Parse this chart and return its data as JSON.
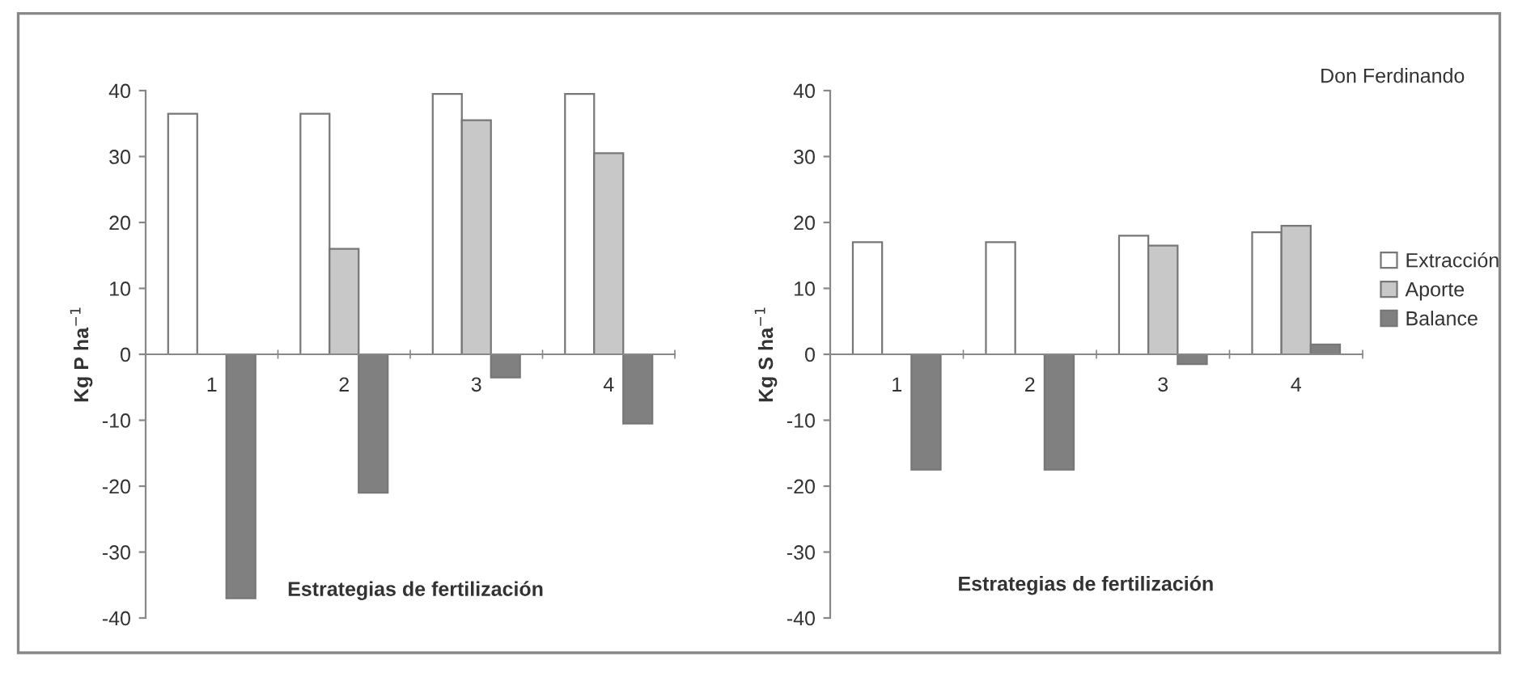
{
  "chart_data": [
    {
      "type": "bar",
      "categories": [
        "1",
        "2",
        "3",
        "4"
      ],
      "ylabel": "Kg P ha$^{−1}$",
      "xlabel": "Estrategias de fertilización",
      "ylim": [
        -40,
        40
      ],
      "yticks": [
        -40,
        -30,
        -20,
        -10,
        0,
        10,
        20,
        30,
        40
      ],
      "grid": false,
      "legend": false,
      "series": [
        {
          "color": "#ffffff",
          "values": [
            36.5,
            36.5,
            39.5,
            39.5
          ]
        },
        {
          "color": "#c8c8c8",
          "values": [
            null,
            16,
            35.5,
            30.5
          ]
        },
        {
          "color": "#808080",
          "values": [
            -37,
            -21,
            -3.5,
            -10.5
          ]
        }
      ]
    },
    {
      "type": "bar",
      "categories": [
        "1",
        "2",
        "3",
        "4"
      ],
      "ylabel": "Kg S ha$^{−1}$",
      "xlabel": "Estrategias de fertilización",
      "annotations": [
        "Don Ferdinando"
      ],
      "ylim": [
        -40,
        40
      ],
      "yticks": [
        -40,
        -30,
        -20,
        -10,
        0,
        10,
        20,
        30,
        40
      ],
      "grid": false,
      "legend": "right",
      "series": [
        {
          "name": "Extracción",
          "color": "#ffffff",
          "values": [
            17,
            17,
            18,
            18.5
          ]
        },
        {
          "name": "Aporte",
          "color": "#c8c8c8",
          "values": [
            null,
            null,
            16.5,
            19.5
          ]
        },
        {
          "name": "Balance",
          "color": "#808080",
          "values": [
            -17.5,
            -17.5,
            -1.5,
            1.5
          ]
        }
      ]
    }
  ]
}
